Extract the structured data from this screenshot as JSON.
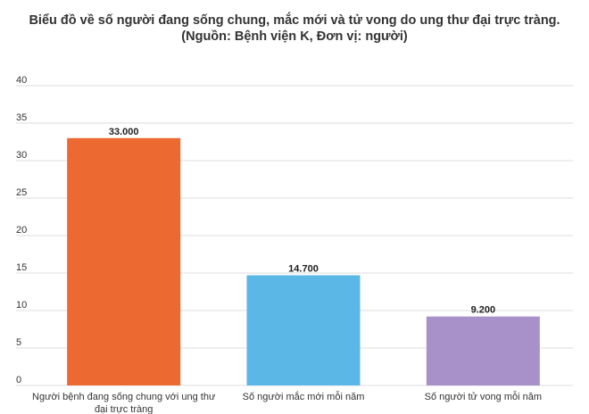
{
  "chart_data": {
    "type": "bar",
    "title": "Biểu đồ về số người đang sống chung, mắc mới và tử vong do ung thư đại trực tràng.",
    "subtitle": "(Nguồn: Bệnh viện K, Đơn vị: người)",
    "categories": [
      [
        "Người bệnh đang sống chung với ung thư",
        "đại trực tràng"
      ],
      [
        "Số người mắc mới mỗi năm"
      ],
      [
        "Số người tử vong mỗi năm"
      ]
    ],
    "values": [
      33,
      14.7,
      9.2
    ],
    "data_labels": [
      "33.000",
      "14.700",
      "9.200"
    ],
    "colors": [
      "#ec6a32",
      "#5ab7e6",
      "#a890c9"
    ],
    "ylim": [
      0,
      40
    ],
    "yticks": [
      "0",
      "5",
      "10",
      "15",
      "20",
      "25",
      "30",
      "35",
      "40"
    ],
    "grid": true,
    "legend": "none"
  }
}
